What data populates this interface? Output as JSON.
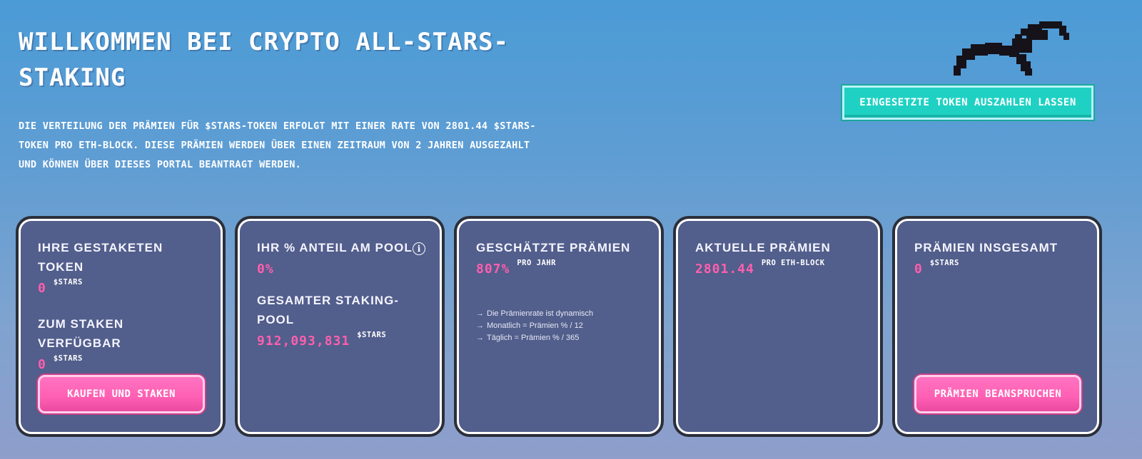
{
  "hero": {
    "title": "Willkommen bei Crypto All-Stars-Staking",
    "description": "Die Verteilung der Prämien für $STARS-Token erfolgt mit einer Rate von 2801.44 $STARS-Token pro ETH-Block. Diese Prämien werden über einen Zeitraum von 2 Jahren ausgezahlt und können über dieses Portal beantragt werden.",
    "withdraw_label": "Eingesetzte Token auszahlen lassen",
    "logo_icon": "bird-icon"
  },
  "cards": {
    "staked": {
      "label": "Ihre gestaketen Token",
      "value": "0",
      "unit": "$STARS",
      "available_label": "Zum Staken verfügbar",
      "available_value": "0",
      "available_unit": "$STARS",
      "button_label": "Kaufen und Staken"
    },
    "share": {
      "label": "Ihr % Anteil am Pool",
      "info_icon": "info-icon",
      "value": "0%",
      "pool_label": "Gesamter Staking-Pool",
      "pool_value": "912,093,831",
      "pool_unit": "$STARS"
    },
    "estimated": {
      "label": "Geschätzte Prämien",
      "value": "807%",
      "unit": "pro Jahr",
      "notes": [
        "Die Prämienrate ist dynamisch",
        "Monatlich = Prämien % / 12",
        "Täglich = Prämien % / 365"
      ]
    },
    "current": {
      "label": "Aktuelle Prämien",
      "value": "2801.44",
      "unit": "pro ETH-Block"
    },
    "total": {
      "label": "Prämien insgesamt",
      "value": "0",
      "unit": "$STARS",
      "button_label": "Prämien beanspruchen"
    }
  },
  "colors": {
    "accent_pink": "#ff5fae",
    "accent_teal": "#1fd1c3",
    "card_bg": "#525e8b"
  }
}
